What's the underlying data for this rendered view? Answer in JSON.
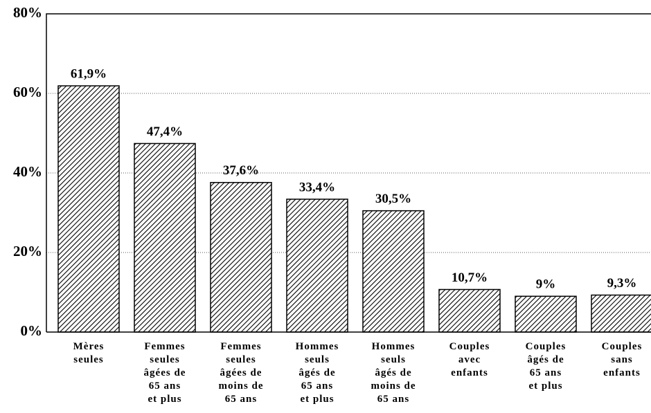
{
  "chart_data": {
    "type": "bar",
    "categories": [
      "Mères\nseules",
      "Femmes\nseules\nâgées de\n65 ans\net plus",
      "Femmes\nseules\nâgées de\nmoins de\n65 ans",
      "Hommes\nseuls\nâgés de\n65 ans\net plus",
      "Hommes\nseuls\nâgés de\nmoins de\n65 ans",
      "Couples\navec\nenfants",
      "Couples\nâgés de\n65 ans\net plus",
      "Couples\nsans\nenfants"
    ],
    "values": [
      61.9,
      47.4,
      37.6,
      33.4,
      30.5,
      10.7,
      9,
      9.3
    ],
    "value_labels": [
      "61,9%",
      "47,4%",
      "37,6%",
      "33,4%",
      "30,5%",
      "10,7%",
      "9%",
      "9,3%"
    ],
    "color": "#000000",
    "ylim": [
      0,
      80
    ],
    "yticks": [
      {
        "value": 0,
        "label": "0%"
      },
      {
        "value": 20,
        "label": "20%"
      },
      {
        "value": 40,
        "label": "40%"
      },
      {
        "value": 60,
        "label": "60%"
      },
      {
        "value": 80,
        "label": "80%"
      }
    ],
    "grid": true
  }
}
